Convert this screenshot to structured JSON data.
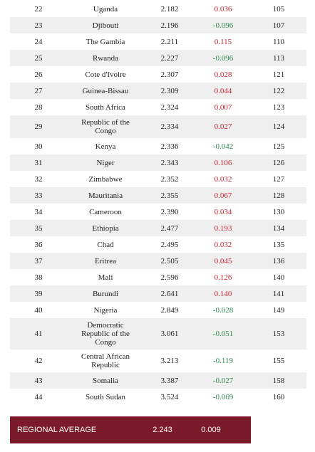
{
  "table": {
    "rows": [
      [
        "22",
        "Uganda",
        "2.182",
        "0.036",
        "105"
      ],
      [
        "23",
        "Djibouti",
        "2.196",
        "-0.096",
        "107"
      ],
      [
        "24",
        "The Gambia",
        "2.211",
        "0.115",
        "110"
      ],
      [
        "25",
        "Rwanda",
        "2.227",
        "-0.096",
        "113"
      ],
      [
        "26",
        "Cote d'Ivoire",
        "2.307",
        "0.028",
        "121"
      ],
      [
        "27",
        "Guinea-Bissau",
        "2.309",
        "0.044",
        "122"
      ],
      [
        "28",
        "South Africa",
        "2.324",
        "0.007",
        "123"
      ],
      [
        "29",
        "Republic of the Congo",
        "2.334",
        "0.027",
        "124"
      ],
      [
        "30",
        "Kenya",
        "2.336",
        "-0.042",
        "125"
      ],
      [
        "31",
        "Niger",
        "2.343",
        "0.106",
        "126"
      ],
      [
        "32",
        "Zimbabwe",
        "2.352",
        "0.032",
        "127"
      ],
      [
        "33",
        "Mauritania",
        "2.355",
        "0.067",
        "128"
      ],
      [
        "34",
        "Cameroon",
        "2.390",
        "0.034",
        "130"
      ],
      [
        "35",
        "Ethiopia",
        "2.477",
        "0.193",
        "134"
      ],
      [
        "36",
        "Chad",
        "2.495",
        "0.032",
        "135"
      ],
      [
        "37",
        "Eritrea",
        "2.505",
        "0.045",
        "136"
      ],
      [
        "38",
        "Mali",
        "2.596",
        "0.126",
        "140"
      ],
      [
        "39",
        "Burundi",
        "2.641",
        "0.140",
        "141"
      ],
      [
        "40",
        "Nigeria",
        "2.849",
        "-0.028",
        "149"
      ],
      [
        "41",
        "Democratic Republic of the Congo",
        "3.061",
        "-0.051",
        "153"
      ],
      [
        "42",
        "Central African Republic",
        "3.213",
        "-0.119",
        "155"
      ],
      [
        "43",
        "Somalia",
        "3.387",
        "-0.027",
        "158"
      ],
      [
        "44",
        "South Sudan",
        "3.524",
        "-0.069",
        "160"
      ]
    ]
  },
  "footer": {
    "label": "REGIONAL AVERAGE",
    "score": "2.243",
    "change": "0.009"
  }
}
